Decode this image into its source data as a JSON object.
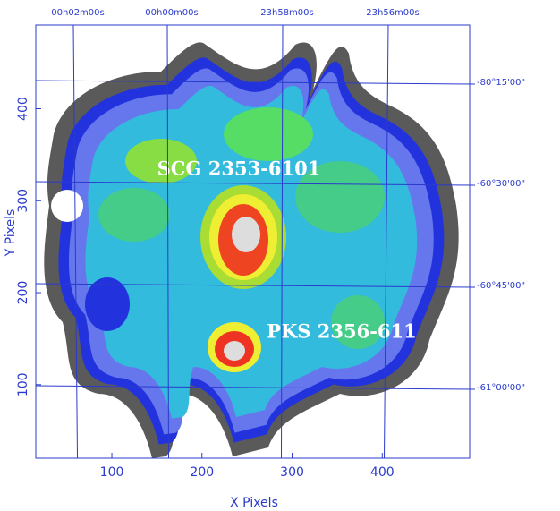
{
  "chart_data": {
    "type": "image",
    "xlabel": "X Pixels",
    "ylabel": "Y Pixels",
    "xlim": [
      15.6,
      497
    ],
    "ylim": [
      20,
      491
    ],
    "xticks": [
      100,
      200,
      300,
      400
    ],
    "yticks": [
      100,
      200,
      300,
      400
    ],
    "top_axis_labels": [
      "00h02m00s",
      "00h00m00s",
      "23h58m00s",
      "23h56m00s"
    ],
    "right_axis_labels": [
      "-80°15'00\"",
      "-60°30'00\"",
      "-60°45'00\"",
      "-61°00'00\""
    ],
    "annotations": [
      "SCG 2353-6101",
      "PKS 2356-611"
    ],
    "grid": true,
    "axis_color": "#2a3acc"
  }
}
